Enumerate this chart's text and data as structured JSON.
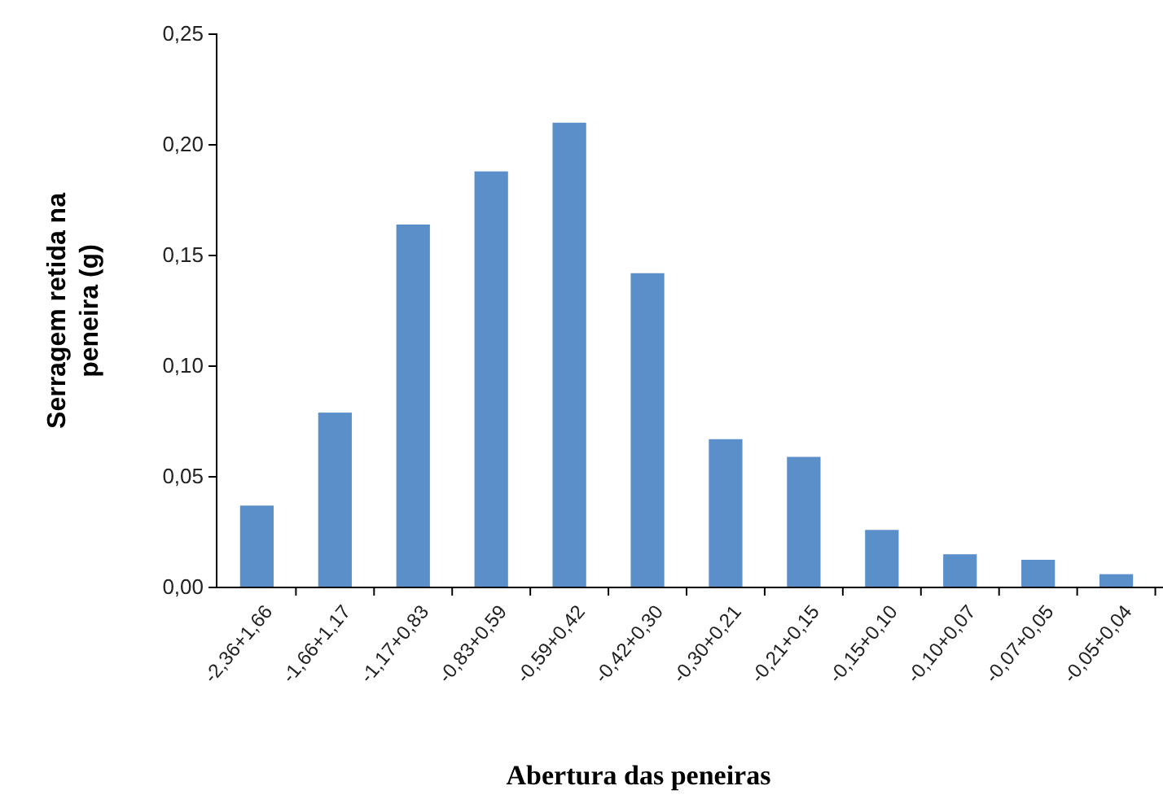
{
  "chart_data": {
    "type": "bar",
    "xlabel": "Abertura das peneiras",
    "ylabel": "Serragem retida na peneira (g)",
    "categories": [
      "-2,36+1,66",
      "-1,66+1,17",
      "-1,17+0,83",
      "-0,83+0,59",
      "-0,59+0,42",
      "-0,42+0,30",
      "-0,30+0,21",
      "-0,21+0,15",
      "-0,15+0,10",
      "-0,10+0,07",
      "-0,07+0,05",
      "-0,05+0,04"
    ],
    "values": [
      0.037,
      0.079,
      0.164,
      0.188,
      0.21,
      0.142,
      0.067,
      0.059,
      0.026,
      0.015,
      0.0125,
      0.006
    ],
    "color": "#5b8fc9",
    "ylim": [
      0,
      0.25
    ],
    "yticks": [
      {
        "value": 0,
        "label": "0,00"
      },
      {
        "value": 0.05,
        "label": "0,05"
      },
      {
        "value": 0.1,
        "label": "0,10"
      },
      {
        "value": 0.15,
        "label": "0,15"
      },
      {
        "value": 0.2,
        "label": "0,20"
      },
      {
        "value": 0.25,
        "label": "0,25"
      }
    ],
    "grid": false
  }
}
